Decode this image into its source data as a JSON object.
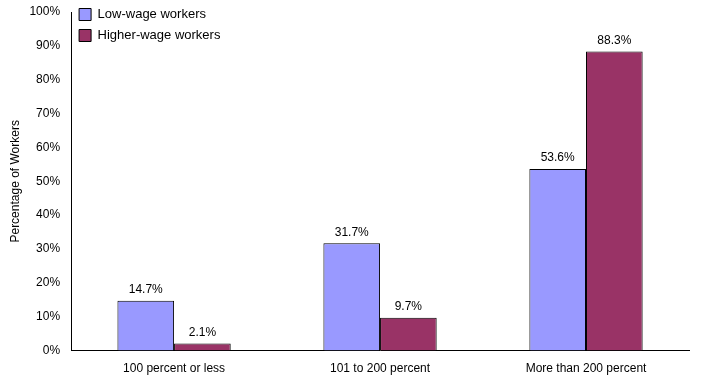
{
  "chart_data": {
    "type": "bar",
    "y_label": "Percentage of Workers",
    "categories": [
      "100 percent or less",
      "101 to 200 percent",
      "More than 200 percent"
    ],
    "series": [
      {
        "name": "Low-wage workers",
        "color": "#9999ff",
        "values": [
          14.7,
          31.7,
          53.6
        ],
        "value_labels": [
          "14.7%",
          "31.7%",
          "53.6%"
        ]
      },
      {
        "name": "Higher-wage workers",
        "color": "#993366",
        "values": [
          2.1,
          9.7,
          88.3
        ],
        "value_labels": [
          "2.1%",
          "9.7%",
          "88.3%"
        ]
      }
    ],
    "ylim": [
      0,
      100
    ],
    "yticks": [
      {
        "value": 0,
        "label": "0%"
      },
      {
        "value": 10,
        "label": "10%"
      },
      {
        "value": 20,
        "label": "20%"
      },
      {
        "value": 30,
        "label": "30%"
      },
      {
        "value": 40,
        "label": "40%"
      },
      {
        "value": 50,
        "label": "50%"
      },
      {
        "value": 60,
        "label": "60%"
      },
      {
        "value": 70,
        "label": "70%"
      },
      {
        "value": 80,
        "label": "80%"
      },
      {
        "value": 90,
        "label": "90%"
      },
      {
        "value": 100,
        "label": "100%"
      }
    ],
    "grid": false,
    "legend": "upper left",
    "data_labels": true
  }
}
